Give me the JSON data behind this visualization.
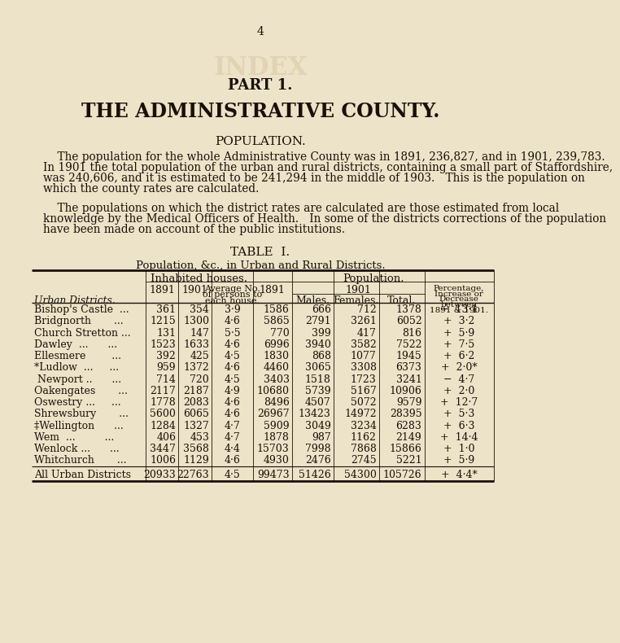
{
  "page_number": "4",
  "part_title": "PART 1.",
  "main_title": "THE ADMINISTRATIVE COUNTY.",
  "section_title": "POPULATION.",
  "paragraph1_line1": "    The population for the whole Administrative County was in 1891, 236,827, and in 1901, 239,783.",
  "paragraph1_line2": "In 1901 the total population of the urban and rural districts, containing a small part of Staffordshire,",
  "paragraph1_line3": "was 240,606, and it is estimated to be 241,294 in the middle of 1903.   This is the population on",
  "paragraph1_line4": "which the county rates are calculated.",
  "paragraph2_line1": "    The populations on which the district rates are calculated are those estimated from local",
  "paragraph2_line2": "knowledge by the Medical Officers of Health.   In some of the districts corrections of the population",
  "paragraph2_line3": "have been made on account of the public institutions.",
  "table_title": "TABLE  I.",
  "table_subtitle": "Population, &c., in Urban and Rural Districts.",
  "rows": [
    {
      "district": "Bishop's Castle  ...",
      "h1891": "361",
      "h1901": "354",
      "avg": "3·9",
      "pop1891": "1586",
      "males": "666",
      "females": "712",
      "total": "1378",
      "pct": "−  13·1"
    },
    {
      "district": "Bridgnorth       ...",
      "h1891": "1215",
      "h1901": "1300",
      "avg": "4·6",
      "pop1891": "5865",
      "males": "2791",
      "females": "3261",
      "total": "6052",
      "pct": "+  3·2"
    },
    {
      "district": "Church Stretton ...",
      "h1891": "131",
      "h1901": "147",
      "avg": "5·5",
      "pop1891": "770",
      "males": "399",
      "females": "417",
      "total": "816",
      "pct": "+  5·9"
    },
    {
      "district": "Dawley  ...      ...",
      "h1891": "1523",
      "h1901": "1633",
      "avg": "4·6",
      "pop1891": "6996",
      "males": "3940",
      "females": "3582",
      "total": "7522",
      "pct": "+  7·5"
    },
    {
      "district": "Ellesmere        ...",
      "h1891": "392",
      "h1901": "425",
      "avg": "4·5",
      "pop1891": "1830",
      "males": "868",
      "females": "1077",
      "total": "1945",
      "pct": "+  6·2"
    },
    {
      "district": "*Ludlow  ...     ...",
      "h1891": "959",
      "h1901": "1372",
      "avg": "4·6",
      "pop1891": "4460",
      "males": "3065",
      "females": "3308",
      "total": "6373",
      "pct": "+  2·0*"
    },
    {
      "district": " Newport ..      ...",
      "h1891": "714",
      "h1901": "720",
      "avg": "4·5",
      "pop1891": "3403",
      "males": "1518",
      "females": "1723",
      "total": "3241",
      "pct": "−  4·7"
    },
    {
      "district": "Oakengates       ...",
      "h1891": "2117",
      "h1901": "2187",
      "avg": "4·9",
      "pop1891": "10680",
      "males": "5739",
      "females": "5167",
      "total": "10906",
      "pct": "+  2·0"
    },
    {
      "district": "Oswestry ...     ...",
      "h1891": "1778",
      "h1901": "2083",
      "avg": "4·6",
      "pop1891": "8496",
      "males": "4507",
      "females": "5072",
      "total": "9579",
      "pct": "+  12·7"
    },
    {
      "district": "Shrewsbury       ...",
      "h1891": "5600",
      "h1901": "6065",
      "avg": "4·6",
      "pop1891": "26967",
      "males": "13423",
      "females": "14972",
      "total": "28395",
      "pct": "+  5·3"
    },
    {
      "district": "‡Wellington      ...",
      "h1891": "1284",
      "h1901": "1327",
      "avg": "4·7",
      "pop1891": "5909",
      "males": "3049",
      "females": "3234",
      "total": "6283",
      "pct": "+  6·3"
    },
    {
      "district": "Wem  ...         ...",
      "h1891": "406",
      "h1901": "453",
      "avg": "4·7",
      "pop1891": "1878",
      "males": "987",
      "females": "1162",
      "total": "2149",
      "pct": "+  14·4"
    },
    {
      "district": "Wenlock ...      ...",
      "h1891": "3447",
      "h1901": "3568",
      "avg": "4·4",
      "pop1891": "15703",
      "males": "7998",
      "females": "7868",
      "total": "15866",
      "pct": "+  1·0"
    },
    {
      "district": "Whitchurch       ...",
      "h1891": "1006",
      "h1901": "1129",
      "avg": "4·6",
      "pop1891": "4930",
      "males": "2476",
      "females": "2745",
      "total": "5221",
      "pct": "+  5·9"
    }
  ],
  "totals": {
    "district": "All Urban Districts",
    "h1891": "20933",
    "h1901": "22763",
    "avg": "4·5",
    "pop1891": "99473",
    "males": "51426",
    "females": "54300",
    "total": "105726",
    "pct": "+  4·4*"
  },
  "bg_color": "#ede3c8",
  "text_color": "#1a1008",
  "line_color": "#1a1008"
}
